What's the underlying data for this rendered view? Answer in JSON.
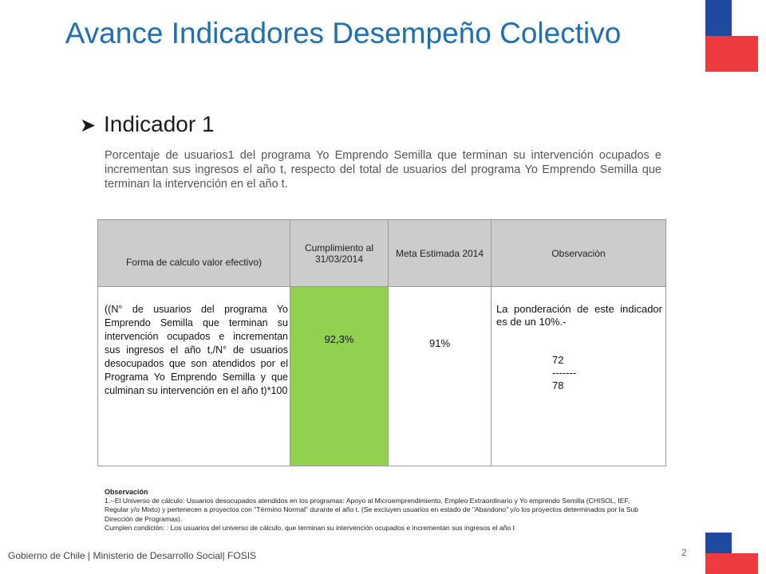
{
  "title": "Avance Indicadores Desempeño Colectivo",
  "subtitle": "Indicador 1",
  "description": "Porcentaje de usuarios1 del programa Yo Emprendo Semilla  que terminan su intervención ocupados e incrementan sus ingresos el año t, respecto del total de usuarios del programa Yo Emprendo Semilla que terminan la intervención en el año t.",
  "table": {
    "headers": [
      "Forma de calculo  valor efectivo)",
      "Cumplimiento al 31/03/2014",
      "Meta Estimada 2014",
      "Observaciòn"
    ],
    "formula": "((N° de usuarios del programa Yo Emprendo Semilla que terminan su intervención ocupados e incrementan sus ingresos el año t,/N° de usuarios desocupados que son atendidos por el Programa Yo Emprendo Semilla  y que culminan su intervención  en el año t)*100",
    "cumplimiento": "92,3%",
    "meta": "91%",
    "observacion_text": "La ponderación de este indicador es de un 10%.-",
    "numerator": "72",
    "divider": "-------",
    "denominator": "78"
  },
  "notes": {
    "heading": "Observación",
    "line1": "1.--El Universo de cálculo: Usuarios desocupados  atendidos en los programas: Apoyo al Microemprendimiento, Empleo Extraordinario  y Yo emprendo Semilla (CHISOL, IEF, Regular y/o Mixto) y pertenecen a proyectos  con \"Término Normal\" durante el año t. (Se excluyen usuarios en estado de \"Abandono\" y/o los proyectos determinados por la Sub Dirección de Programas).",
    "line2": "Cumplen condición: : Los usuarios del universo de cálculo, que terminan su intervención ocupados e incrementan sus ingresos el año t"
  },
  "footer": "Gobierno de Chile | Ministerio de  Desarrollo Social| FOSIS",
  "page_number": "2",
  "colors": {
    "title": "#1d6fb8",
    "green_cell": "#92d050",
    "flag_blue": "#1f4aa0",
    "flag_red": "#ee3b40"
  }
}
